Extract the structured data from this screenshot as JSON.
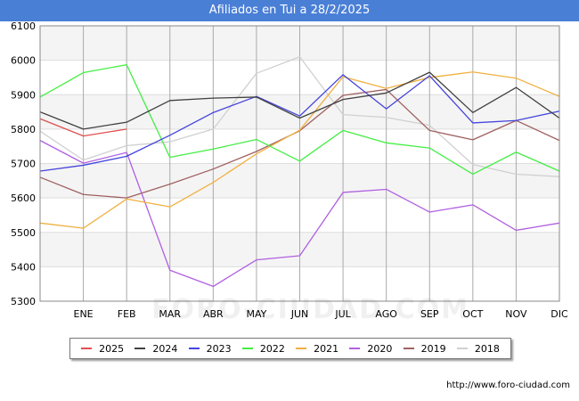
{
  "title": "Afiliados en Tui a 28/2/2025",
  "source": "http://www.foro-ciudad.com",
  "watermark": "FORO-CIUDAD.COM",
  "chart_data": {
    "type": "line",
    "title": "Afiliados en Tui a 28/2/2025",
    "x_labels": [
      "",
      "ENE",
      "FEB",
      "MAR",
      "ABR",
      "MAY",
      "JUN",
      "JUL",
      "AGO",
      "SEP",
      "OCT",
      "NOV",
      "DIC"
    ],
    "ylim": [
      5300,
      6100
    ],
    "yticks": [
      5300,
      5400,
      5500,
      5600,
      5700,
      5800,
      5900,
      6000,
      6100
    ],
    "grid": true,
    "legend_position": "bottom",
    "series": [
      {
        "name": "2025",
        "color": "#e05050",
        "values": [
          5830,
          5780,
          5800
        ]
      },
      {
        "name": "2024",
        "color": "#404040",
        "values": [
          5850,
          5800,
          5820,
          5883,
          5890,
          5893,
          5832,
          5886,
          5905,
          5965,
          5848,
          5921,
          5832
        ]
      },
      {
        "name": "2023",
        "color": "#4444dd",
        "values": [
          5678,
          5695,
          5721,
          5782,
          5848,
          5895,
          5838,
          5958,
          5859,
          5955,
          5818,
          5825,
          5852
        ]
      },
      {
        "name": "2022",
        "color": "#44ee44",
        "values": [
          5893,
          5964,
          5987,
          5718,
          5742,
          5770,
          5707,
          5796,
          5760,
          5745,
          5669,
          5733,
          5678
        ]
      },
      {
        "name": "2021",
        "color": "#f0b040",
        "values": [
          5527,
          5512,
          5597,
          5574,
          5645,
          5728,
          5797,
          5952,
          5918,
          5950,
          5966,
          5948,
          5895
        ]
      },
      {
        "name": "2020",
        "color": "#b060e0",
        "values": [
          5767,
          5701,
          5732,
          5390,
          5343,
          5420,
          5432,
          5616,
          5625,
          5559,
          5580,
          5506,
          5527
        ]
      },
      {
        "name": "2019",
        "color": "#a06060",
        "values": [
          5660,
          5610,
          5600,
          5640,
          5684,
          5735,
          5795,
          5898,
          5915,
          5796,
          5769,
          5825,
          5767
        ]
      },
      {
        "name": "2018",
        "color": "#d0d0d0",
        "values": [
          5794,
          5710,
          5752,
          5763,
          5800,
          5962,
          6010,
          5842,
          5834,
          5811,
          5697,
          5669,
          5662
        ]
      }
    ]
  }
}
